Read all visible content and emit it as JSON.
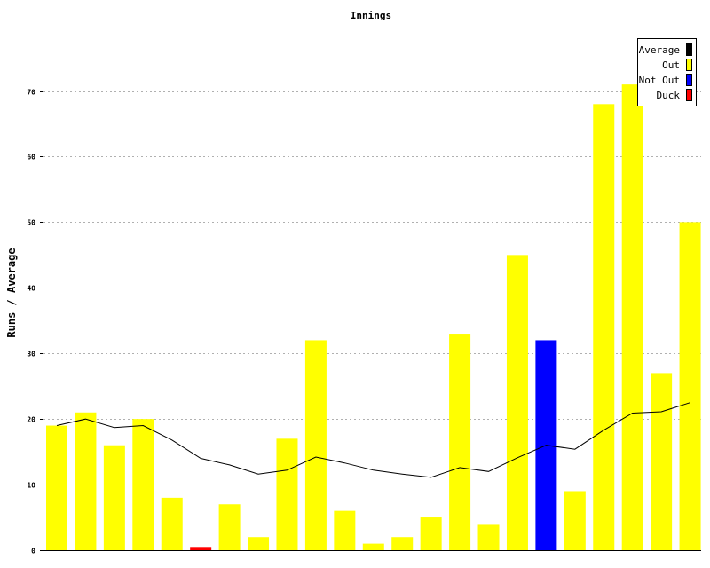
{
  "chart_data": {
    "type": "bar",
    "title": "Innings",
    "xlabel": "",
    "ylabel": "Runs / Average",
    "ylim": [
      0,
      79
    ],
    "yticks": [
      0,
      10,
      20,
      30,
      40,
      50,
      60,
      70
    ],
    "grid": true,
    "legend_position": "top-right",
    "legend": [
      {
        "label": "Average",
        "color": "#000000"
      },
      {
        "label": "Out",
        "color": "#ffff00"
      },
      {
        "label": "Not Out",
        "color": "#0000ff"
      },
      {
        "label": "Duck",
        "color": "#ff0000"
      }
    ],
    "bars": [
      {
        "value": 19,
        "status": "Out"
      },
      {
        "value": 21,
        "status": "Out"
      },
      {
        "value": 16,
        "status": "Out"
      },
      {
        "value": 20,
        "status": "Out"
      },
      {
        "value": 8,
        "status": "Out"
      },
      {
        "value": 0.5,
        "status": "Duck"
      },
      {
        "value": 7,
        "status": "Out"
      },
      {
        "value": 2,
        "status": "Out"
      },
      {
        "value": 17,
        "status": "Out"
      },
      {
        "value": 32,
        "status": "Out"
      },
      {
        "value": 6,
        "status": "Out"
      },
      {
        "value": 1,
        "status": "Out"
      },
      {
        "value": 2,
        "status": "Out"
      },
      {
        "value": 5,
        "status": "Out"
      },
      {
        "value": 33,
        "status": "Out"
      },
      {
        "value": 4,
        "status": "Out"
      },
      {
        "value": 45,
        "status": "Out"
      },
      {
        "value": 32,
        "status": "Not Out"
      },
      {
        "value": 9,
        "status": "Out"
      },
      {
        "value": 68,
        "status": "Out"
      },
      {
        "value": 71,
        "status": "Out"
      },
      {
        "value": 27,
        "status": "Out"
      },
      {
        "value": 50,
        "status": "Out"
      }
    ],
    "average": [
      19,
      20,
      18.7,
      19,
      16.8,
      14,
      13,
      11.6,
      12.2,
      14.2,
      13.3,
      12.2,
      11.6,
      11.1,
      12.6,
      12.0,
      14.1,
      16.0,
      15.4,
      18.3,
      20.9,
      21.1,
      22.5
    ]
  }
}
